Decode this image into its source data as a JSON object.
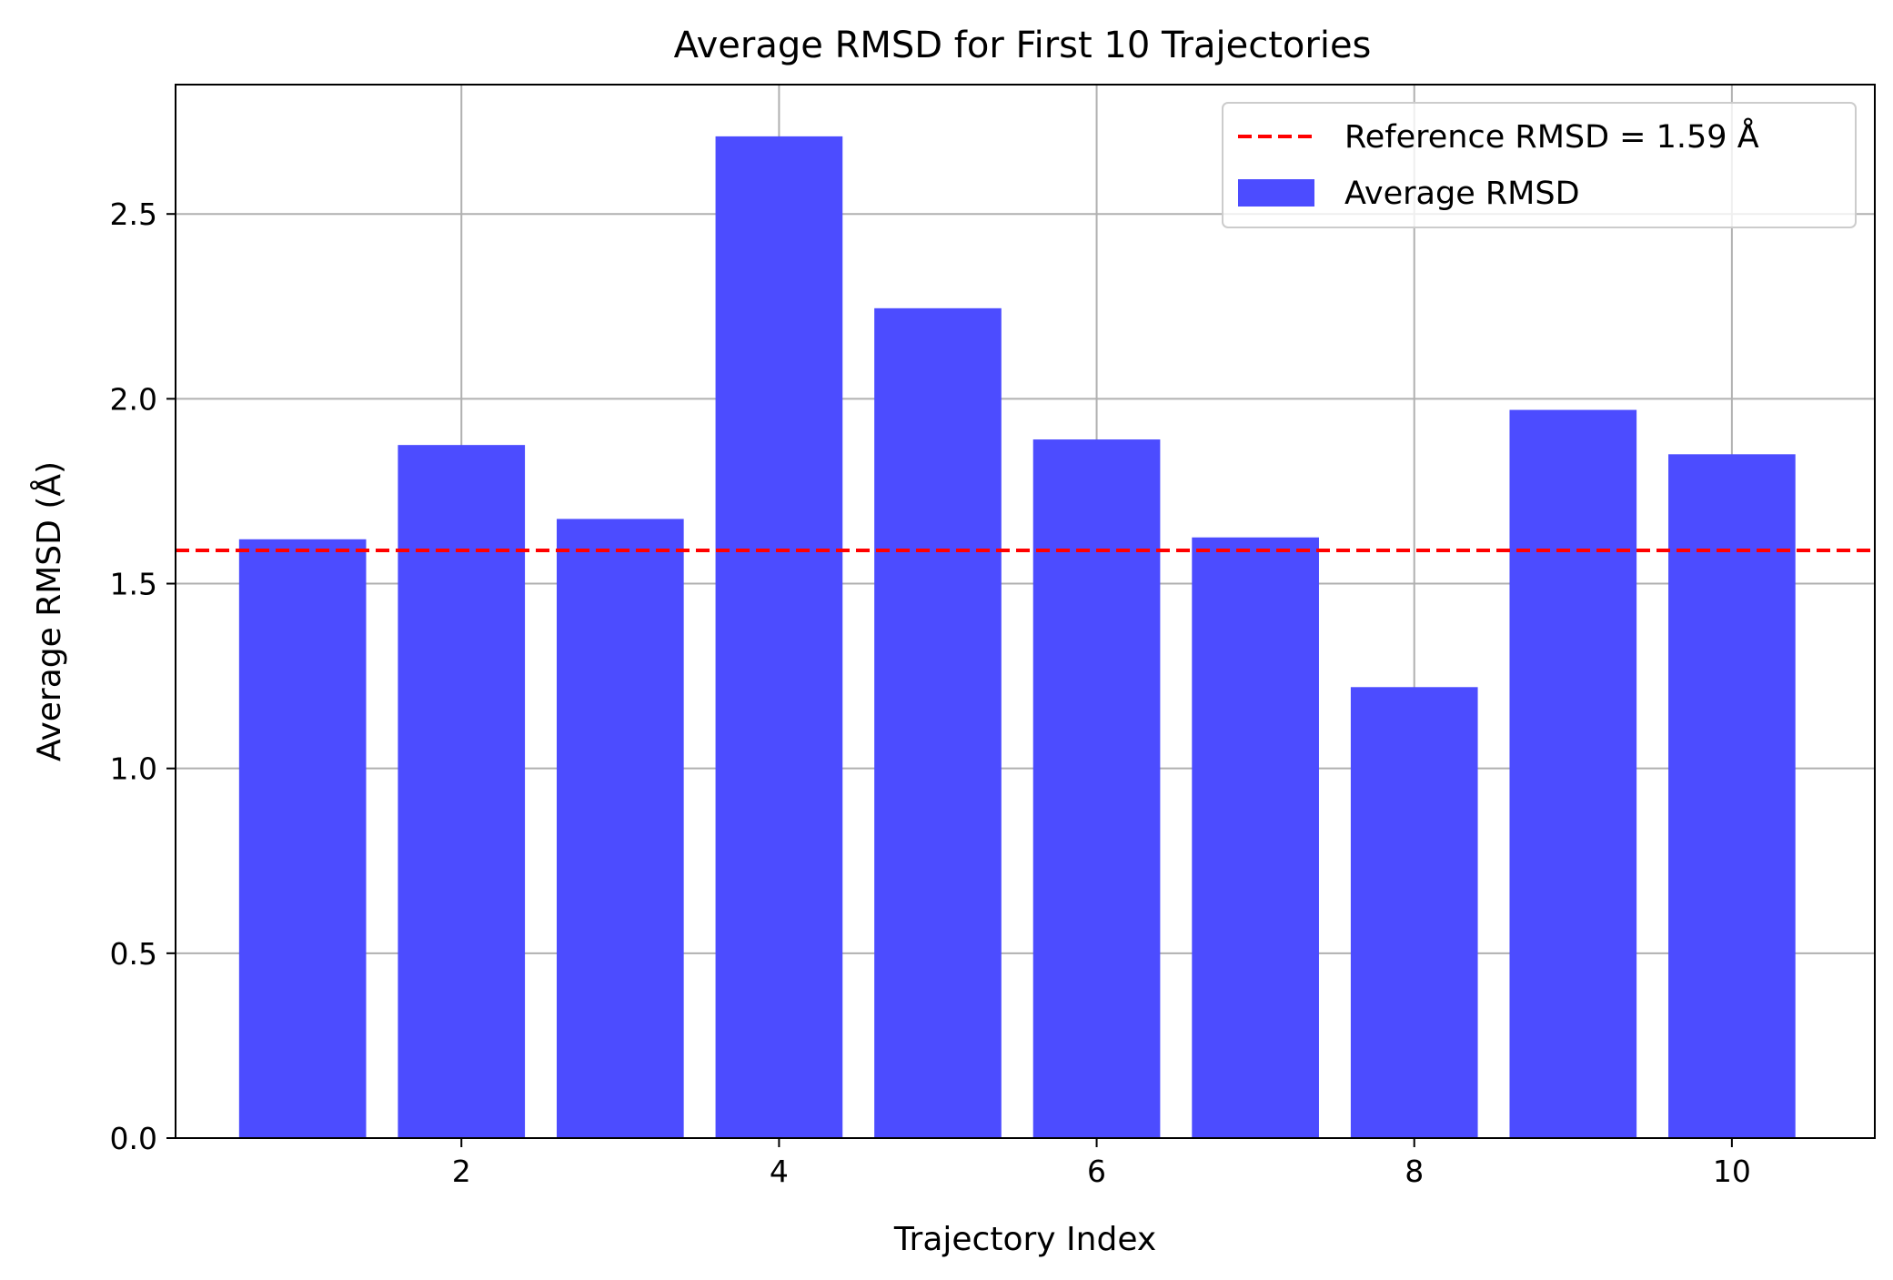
{
  "chart_data": {
    "type": "bar",
    "title": "Average RMSD for First 10 Trajectories",
    "xlabel": "Trajectory Index",
    "ylabel": "Average RMSD (Å)",
    "x": [
      1,
      2,
      3,
      4,
      5,
      6,
      7,
      8,
      9,
      10
    ],
    "values": [
      1.62,
      1.875,
      1.675,
      2.71,
      2.245,
      1.89,
      1.625,
      1.22,
      1.97,
      1.85
    ],
    "xlim": [
      0.2,
      10.9
    ],
    "ylim": [
      0,
      2.85
    ],
    "xticks": [
      2,
      4,
      6,
      8,
      10
    ],
    "yticks": [
      0.0,
      0.5,
      1.0,
      1.5,
      2.0,
      2.5
    ],
    "xtick_labels": [
      "2",
      "4",
      "6",
      "8",
      "10"
    ],
    "ytick_labels": [
      "0.0",
      "0.5",
      "1.0",
      "1.5",
      "2.0",
      "2.5"
    ],
    "grid": true,
    "bar_color": "#4c4cff",
    "reference": {
      "value": 1.59,
      "label": "Reference RMSD = 1.59 Å",
      "color": "#ff0000",
      "style": "dashed"
    },
    "series": [
      {
        "name": "Average RMSD",
        "color": "#4c4cff"
      }
    ],
    "legend": {
      "placement": "top-right",
      "entries": [
        "Reference RMSD = 1.59 Å",
        "Average RMSD"
      ]
    }
  }
}
